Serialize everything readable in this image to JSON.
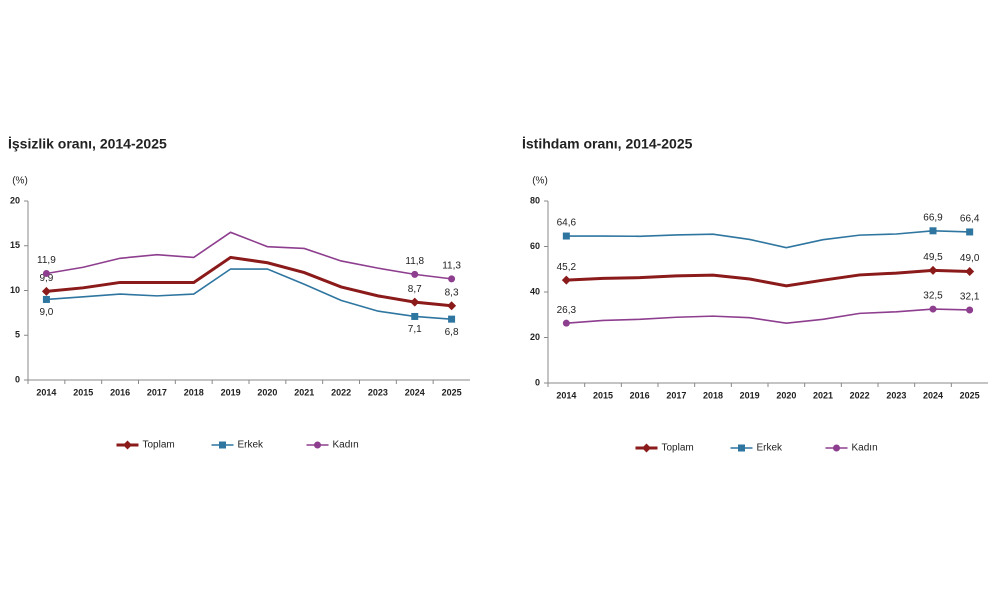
{
  "chart_data": [
    {
      "type": "line",
      "title": "İşsizlik oranı, 2014-2025",
      "y_label": "(%)",
      "categories": [
        "2014",
        "2015",
        "2016",
        "2017",
        "2018",
        "2019",
        "2020",
        "2021",
        "2022",
        "2023",
        "2024",
        "2025"
      ],
      "ylim": [
        0,
        20
      ],
      "yticks": [
        0,
        5,
        10,
        15,
        20
      ],
      "legend": "bottom",
      "series": [
        {
          "name": "Toplam",
          "color": "#8b1a1a",
          "marker": "diamond",
          "values": [
            9.9,
            10.3,
            10.9,
            10.9,
            10.9,
            13.7,
            13.1,
            12.0,
            10.4,
            9.4,
            8.7,
            8.3
          ],
          "value_labels": [
            "9,9",
            null,
            null,
            null,
            null,
            null,
            null,
            null,
            null,
            null,
            "8,7",
            "8,3"
          ]
        },
        {
          "name": "Erkek",
          "color": "#2e75a0",
          "marker": "square",
          "values": [
            9.0,
            9.3,
            9.6,
            9.4,
            9.6,
            12.4,
            12.4,
            10.7,
            8.9,
            7.7,
            7.1,
            6.8
          ],
          "value_labels": [
            "9,0",
            null,
            null,
            null,
            null,
            null,
            null,
            null,
            null,
            null,
            "7,1",
            "6,8"
          ]
        },
        {
          "name": "Kadın",
          "color": "#8e3e8e",
          "marker": "circle",
          "values": [
            11.9,
            12.6,
            13.6,
            14.0,
            13.7,
            16.5,
            14.9,
            14.7,
            13.3,
            12.5,
            11.8,
            11.3
          ],
          "value_labels": [
            "11,9",
            null,
            null,
            null,
            null,
            null,
            null,
            null,
            null,
            null,
            "11,8",
            "11,3"
          ]
        }
      ]
    },
    {
      "type": "line",
      "title": "İstihdam oranı, 2014-2025",
      "y_label": "(%)",
      "categories": [
        "2014",
        "2015",
        "2016",
        "2017",
        "2018",
        "2019",
        "2020",
        "2021",
        "2022",
        "2023",
        "2024",
        "2025"
      ],
      "ylim": [
        0,
        80
      ],
      "yticks": [
        0,
        20,
        40,
        60,
        80
      ],
      "legend": "bottom",
      "series": [
        {
          "name": "Toplam",
          "color": "#8b1a1a",
          "marker": "diamond",
          "values": [
            45.2,
            46.0,
            46.3,
            47.1,
            47.4,
            45.7,
            42.7,
            45.2,
            47.5,
            48.3,
            49.5,
            49.0
          ],
          "value_labels": [
            "45,2",
            null,
            null,
            null,
            null,
            null,
            null,
            null,
            null,
            null,
            "49,5",
            "49,0"
          ]
        },
        {
          "name": "Erkek",
          "color": "#2e75a0",
          "marker": "square",
          "values": [
            64.6,
            64.6,
            64.5,
            65.1,
            65.4,
            63.1,
            59.5,
            63.0,
            65.0,
            65.5,
            66.9,
            66.4
          ],
          "value_labels": [
            "64,6",
            null,
            null,
            null,
            null,
            null,
            null,
            null,
            null,
            null,
            "66,9",
            "66,4"
          ]
        },
        {
          "name": "Kadın",
          "color": "#8e3e8e",
          "marker": "circle",
          "values": [
            26.3,
            27.5,
            28.0,
            28.9,
            29.4,
            28.7,
            26.3,
            28.0,
            30.6,
            31.3,
            32.5,
            32.1
          ],
          "value_labels": [
            "26,3",
            null,
            null,
            null,
            null,
            null,
            null,
            null,
            null,
            null,
            "32,5",
            "32,1"
          ]
        }
      ]
    }
  ]
}
